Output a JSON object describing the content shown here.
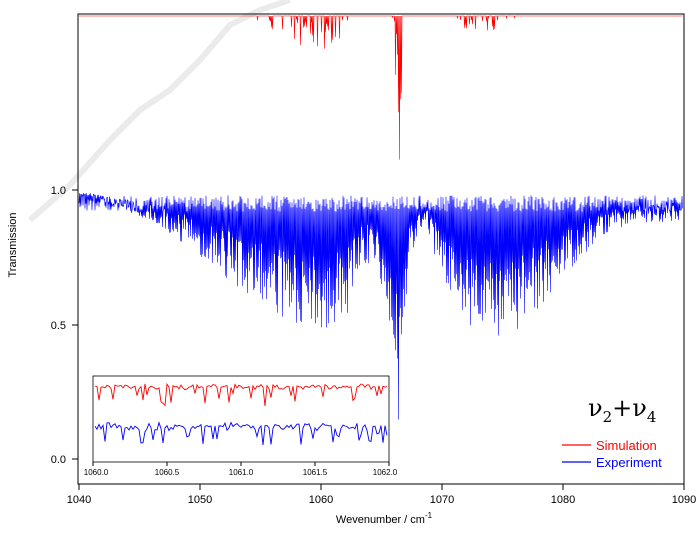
{
  "chart_data": {
    "type": "line",
    "xlabel": "Wevenumber / cm",
    "xlabel_exponent": "-1",
    "ylabel": "Transmission",
    "xlim": [
      1040,
      1090
    ],
    "ylim": [
      0,
      1.5
    ],
    "x_ticks": [
      "1040",
      "1050",
      "1060",
      "1070",
      "1080",
      "1090"
    ],
    "y_ticks": [
      "0.0",
      "0.5",
      "1.0"
    ],
    "band_label": {
      "nu": "ν",
      "sub1": "2",
      "plus": "+",
      "sub2": "4"
    },
    "legend_placement": "bottom-right",
    "series": [
      {
        "name": "Simulation",
        "color": "#ff0000",
        "offset": 0.5,
        "envelope": [
          [
            1041,
            1.98
          ],
          [
            1043,
            1.96
          ],
          [
            1045,
            1.92
          ],
          [
            1047,
            1.86
          ],
          [
            1049,
            1.8
          ],
          [
            1051,
            1.74
          ],
          [
            1053,
            1.7
          ],
          [
            1055,
            1.62
          ],
          [
            1057,
            1.56
          ],
          [
            1059,
            1.52
          ],
          [
            1060.5,
            1.52
          ],
          [
            1062,
            1.58
          ],
          [
            1063.5,
            1.7
          ],
          [
            1064.5,
            1.8
          ],
          [
            1065.3,
            1.86
          ],
          [
            1066.0,
            1.6
          ],
          [
            1066.3,
            1.0
          ],
          [
            1066.6,
            1.0
          ],
          [
            1066.9,
            1.7
          ],
          [
            1067.5,
            1.95
          ],
          [
            1068.5,
            1.9
          ],
          [
            1070,
            1.7
          ],
          [
            1072,
            1.58
          ],
          [
            1074,
            1.58
          ],
          [
            1076,
            1.64
          ],
          [
            1078,
            1.72
          ],
          [
            1080,
            1.8
          ],
          [
            1083,
            1.88
          ],
          [
            1086,
            1.94
          ],
          [
            1090,
            1.98
          ]
        ]
      },
      {
        "name": "Experiment",
        "color": "#0000ff",
        "offset": 0,
        "envelope": [
          [
            1041,
            0.98
          ],
          [
            1043,
            0.94
          ],
          [
            1045,
            0.9
          ],
          [
            1047,
            0.85
          ],
          [
            1049,
            0.79
          ],
          [
            1051,
            0.72
          ],
          [
            1053,
            0.64
          ],
          [
            1055,
            0.58
          ],
          [
            1057,
            0.5
          ],
          [
            1059,
            0.46
          ],
          [
            1061,
            0.46
          ],
          [
            1062.5,
            0.56
          ],
          [
            1063.5,
            0.72
          ],
          [
            1064.5,
            0.72
          ],
          [
            1065.3,
            0.6
          ],
          [
            1066.0,
            0.28
          ],
          [
            1066.4,
            0.05
          ],
          [
            1066.7,
            0.12
          ],
          [
            1067.2,
            0.72
          ],
          [
            1068.5,
            0.88
          ],
          [
            1070,
            0.66
          ],
          [
            1072,
            0.48
          ],
          [
            1074,
            0.42
          ],
          [
            1076,
            0.46
          ],
          [
            1078,
            0.56
          ],
          [
            1080,
            0.68
          ],
          [
            1083,
            0.82
          ],
          [
            1086,
            0.88
          ],
          [
            1090,
            0.88
          ]
        ]
      }
    ],
    "inset": {
      "xlim": [
        1060.0,
        1062.0
      ],
      "x_ticks": [
        "1060.0",
        "1060.5",
        "1061.0",
        "1061.5",
        "1062.0"
      ]
    }
  }
}
